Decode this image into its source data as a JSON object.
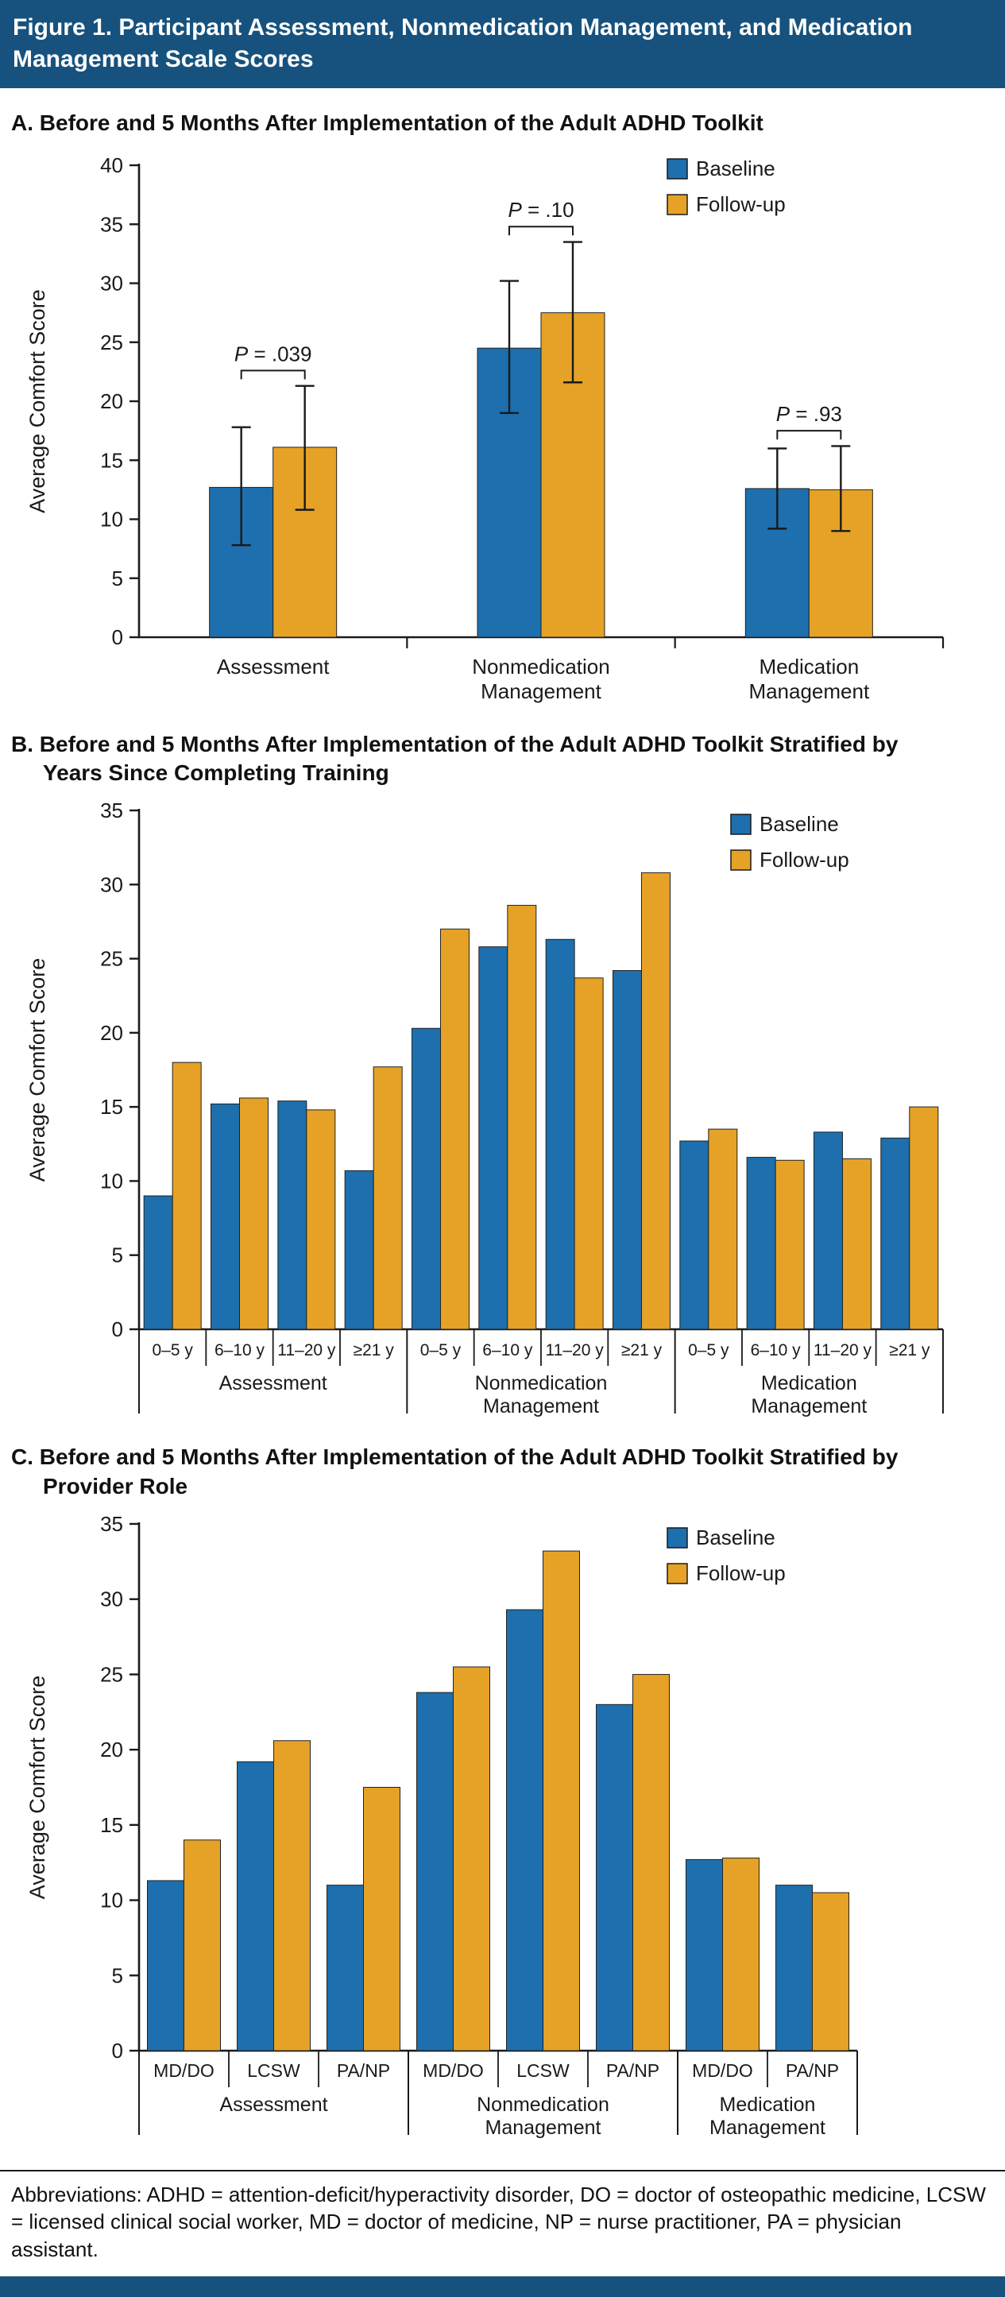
{
  "header": {
    "title": "Figure 1. Participant Assessment, Nonmedication Management, and Medication Management Scale Scores"
  },
  "colors": {
    "baseline": "#1d6fae",
    "followup": "#e5a226",
    "header_bar": "#17527e",
    "axis": "#1a1a1a"
  },
  "footer": {
    "text": "Abbreviations: ADHD = attention-deficit/hyperactivity disorder, DO = doctor of osteopathic medicine, LCSW = licensed clinical social worker, MD = doctor of medicine, NP = nurse practitioner, PA = physician assistant."
  },
  "chart_data": [
    {
      "id": "A",
      "type": "bar",
      "title": "A. Before and 5 Months After Implementation of the Adult ADHD Toolkit",
      "ylabel": "Average Comfort Score",
      "ylim": [
        0,
        40
      ],
      "ytick_step": 5,
      "grid": false,
      "legend": [
        "Baseline",
        "Follow-up"
      ],
      "legend_position": "top-right",
      "groups": [
        {
          "label_lines": [
            "Assessment"
          ],
          "baseline": 12.7,
          "followup": 16.1,
          "baseline_ci": [
            7.8,
            17.8
          ],
          "followup_ci": [
            10.8,
            21.3
          ],
          "p_label": "P = .039"
        },
        {
          "label_lines": [
            "Nonmedication",
            "Management"
          ],
          "baseline": 24.5,
          "followup": 27.5,
          "baseline_ci": [
            19.0,
            30.2
          ],
          "followup_ci": [
            21.6,
            33.5
          ],
          "p_label": "P = .10"
        },
        {
          "label_lines": [
            "Medication",
            "Management"
          ],
          "baseline": 12.6,
          "followup": 12.5,
          "baseline_ci": [
            9.2,
            16.0
          ],
          "followup_ci": [
            9.0,
            16.2
          ],
          "p_label": "P = .93"
        }
      ]
    },
    {
      "id": "B",
      "type": "bar",
      "title_lines": [
        "B. Before and 5 Months After Implementation of the Adult ADHD Toolkit Stratified by",
        "Years Since Completing Training"
      ],
      "ylabel": "Average Comfort Score",
      "ylim": [
        0,
        35
      ],
      "ytick_step": 5,
      "grid": false,
      "legend": [
        "Baseline",
        "Follow-up"
      ],
      "legend_position": "top-right",
      "groups": [
        {
          "label_lines": [
            "Assessment"
          ],
          "subgroups": [
            {
              "label": "0–5 y",
              "baseline": 9.0,
              "followup": 18.0
            },
            {
              "label": "6–10 y",
              "baseline": 15.2,
              "followup": 15.6
            },
            {
              "label": "11–20 y",
              "baseline": 15.4,
              "followup": 14.8
            },
            {
              "label": "≥21 y",
              "baseline": 10.7,
              "followup": 17.7
            }
          ]
        },
        {
          "label_lines": [
            "Nonmedication",
            "Management"
          ],
          "subgroups": [
            {
              "label": "0–5 y",
              "baseline": 20.3,
              "followup": 27.0
            },
            {
              "label": "6–10 y",
              "baseline": 25.8,
              "followup": 28.6
            },
            {
              "label": "11–20 y",
              "baseline": 26.3,
              "followup": 23.7
            },
            {
              "label": "≥21 y",
              "baseline": 24.2,
              "followup": 30.8
            }
          ]
        },
        {
          "label_lines": [
            "Medication",
            "Management"
          ],
          "subgroups": [
            {
              "label": "0–5 y",
              "baseline": 12.7,
              "followup": 13.5
            },
            {
              "label": "6–10 y",
              "baseline": 11.6,
              "followup": 11.4
            },
            {
              "label": "11–20 y",
              "baseline": 13.3,
              "followup": 11.5
            },
            {
              "label": "≥21 y",
              "baseline": 12.9,
              "followup": 15.0
            }
          ]
        }
      ]
    },
    {
      "id": "C",
      "type": "bar",
      "title_lines": [
        "C. Before and 5 Months After Implementation of the Adult ADHD Toolkit Stratified by",
        "Provider Role"
      ],
      "ylabel": "Average Comfort Score",
      "ylim": [
        0,
        35
      ],
      "ytick_step": 5,
      "grid": false,
      "legend": [
        "Baseline",
        "Follow-up"
      ],
      "legend_position": "top-right",
      "groups": [
        {
          "label_lines": [
            "Assessment"
          ],
          "subgroups": [
            {
              "label": "MD/DO",
              "baseline": 11.3,
              "followup": 14.0
            },
            {
              "label": "LCSW",
              "baseline": 19.2,
              "followup": 20.6
            },
            {
              "label": "PA/NP",
              "baseline": 11.0,
              "followup": 17.5
            }
          ]
        },
        {
          "label_lines": [
            "Nonmedication",
            "Management"
          ],
          "subgroups": [
            {
              "label": "MD/DO",
              "baseline": 23.8,
              "followup": 25.5
            },
            {
              "label": "LCSW",
              "baseline": 29.3,
              "followup": 33.2
            },
            {
              "label": "PA/NP",
              "baseline": 23.0,
              "followup": 25.0
            }
          ]
        },
        {
          "label_lines": [
            "Medication",
            "Management"
          ],
          "subgroups": [
            {
              "label": "MD/DO",
              "baseline": 12.7,
              "followup": 12.8
            },
            {
              "label": "PA/NP",
              "baseline": 11.0,
              "followup": 10.5
            }
          ]
        }
      ]
    }
  ]
}
